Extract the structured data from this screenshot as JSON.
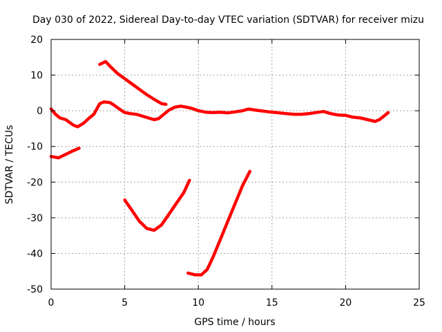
{
  "chart_data": {
    "type": "line",
    "title": "Day 030 of 2022, Sidereal Day-to-day VTEC variation (SDTVAR) for receiver mizu",
    "xlabel": "GPS time / hours",
    "ylabel": "SDTVAR / TECUs",
    "xlim": [
      0,
      25
    ],
    "ylim": [
      -50,
      20
    ],
    "xticks": [
      0,
      5,
      10,
      15,
      20,
      25
    ],
    "yticks": [
      20,
      10,
      0,
      -10,
      -20,
      -30,
      -40,
      -50
    ],
    "grid": true,
    "color": "#ff0000",
    "series": [
      {
        "name": "arc-main",
        "points": [
          [
            0,
            0.5
          ],
          [
            0.3,
            -1
          ],
          [
            0.6,
            -2
          ],
          [
            1.0,
            -2.5
          ],
          [
            1.5,
            -4
          ],
          [
            1.8,
            -4.5
          ],
          [
            2.2,
            -3.5
          ],
          [
            2.6,
            -2
          ],
          [
            2.9,
            -1
          ],
          [
            3.1,
            0.5
          ],
          [
            3.3,
            2
          ],
          [
            3.6,
            2.5
          ],
          [
            4.0,
            2.3
          ],
          [
            4.3,
            1.5
          ],
          [
            4.7,
            0.3
          ],
          [
            5.0,
            -0.5
          ],
          [
            5.4,
            -0.8
          ],
          [
            5.8,
            -1
          ],
          [
            6.2,
            -1.5
          ],
          [
            6.6,
            -2
          ],
          [
            7.0,
            -2.5
          ],
          [
            7.3,
            -2.2
          ],
          [
            7.6,
            -1.2
          ],
          [
            8.0,
            0.2
          ],
          [
            8.4,
            1
          ],
          [
            8.8,
            1.3
          ],
          [
            9.2,
            1
          ],
          [
            9.6,
            0.6
          ],
          [
            10.0,
            0
          ],
          [
            10.5,
            -0.4
          ],
          [
            11.0,
            -0.5
          ],
          [
            11.5,
            -0.4
          ],
          [
            12.0,
            -0.6
          ],
          [
            12.5,
            -0.3
          ],
          [
            13.0,
            0
          ],
          [
            13.4,
            0.5
          ],
          [
            13.7,
            0.3
          ],
          [
            14.2,
            0
          ],
          [
            14.8,
            -0.3
          ],
          [
            15.3,
            -0.5
          ],
          [
            16.0,
            -0.8
          ],
          [
            16.5,
            -1
          ],
          [
            17.0,
            -1
          ],
          [
            17.5,
            -0.8
          ],
          [
            18.0,
            -0.5
          ],
          [
            18.5,
            -0.2
          ],
          [
            19.0,
            -0.8
          ],
          [
            19.5,
            -1.2
          ],
          [
            20.0,
            -1.3
          ],
          [
            20.5,
            -1.8
          ],
          [
            21.0,
            -2
          ],
          [
            21.5,
            -2.5
          ],
          [
            22.0,
            -3
          ],
          [
            22.3,
            -2.5
          ],
          [
            22.6,
            -1.5
          ],
          [
            22.9,
            -0.5
          ]
        ]
      },
      {
        "name": "arc-early",
        "points": [
          [
            0,
            -12.8
          ],
          [
            0.5,
            -13.2
          ],
          [
            1.0,
            -12.2
          ],
          [
            1.5,
            -11.2
          ],
          [
            1.9,
            -10.5
          ]
        ]
      },
      {
        "name": "arc-descending",
        "points": [
          [
            3.3,
            13
          ],
          [
            3.7,
            13.8
          ],
          [
            4.0,
            12.5
          ],
          [
            4.5,
            10.5
          ],
          [
            5.0,
            9
          ],
          [
            5.5,
            7.5
          ],
          [
            6.0,
            6
          ],
          [
            6.5,
            4.5
          ],
          [
            7.0,
            3.2
          ],
          [
            7.5,
            2
          ],
          [
            7.8,
            1.8
          ]
        ]
      },
      {
        "name": "arc-dip-1",
        "points": [
          [
            5.0,
            -25
          ],
          [
            5.5,
            -28
          ],
          [
            6.0,
            -31
          ],
          [
            6.5,
            -33
          ],
          [
            7.0,
            -33.5
          ],
          [
            7.5,
            -32
          ],
          [
            8.0,
            -29
          ],
          [
            8.5,
            -26
          ],
          [
            9.0,
            -23
          ],
          [
            9.4,
            -19.5
          ]
        ]
      },
      {
        "name": "arc-dip-2",
        "points": [
          [
            9.3,
            -45.5
          ],
          [
            9.8,
            -46
          ],
          [
            10.2,
            -46
          ],
          [
            10.6,
            -44.5
          ],
          [
            11.0,
            -41
          ],
          [
            11.5,
            -36
          ],
          [
            12.0,
            -31
          ],
          [
            12.5,
            -26
          ],
          [
            13.0,
            -21
          ],
          [
            13.5,
            -17
          ]
        ]
      }
    ]
  }
}
